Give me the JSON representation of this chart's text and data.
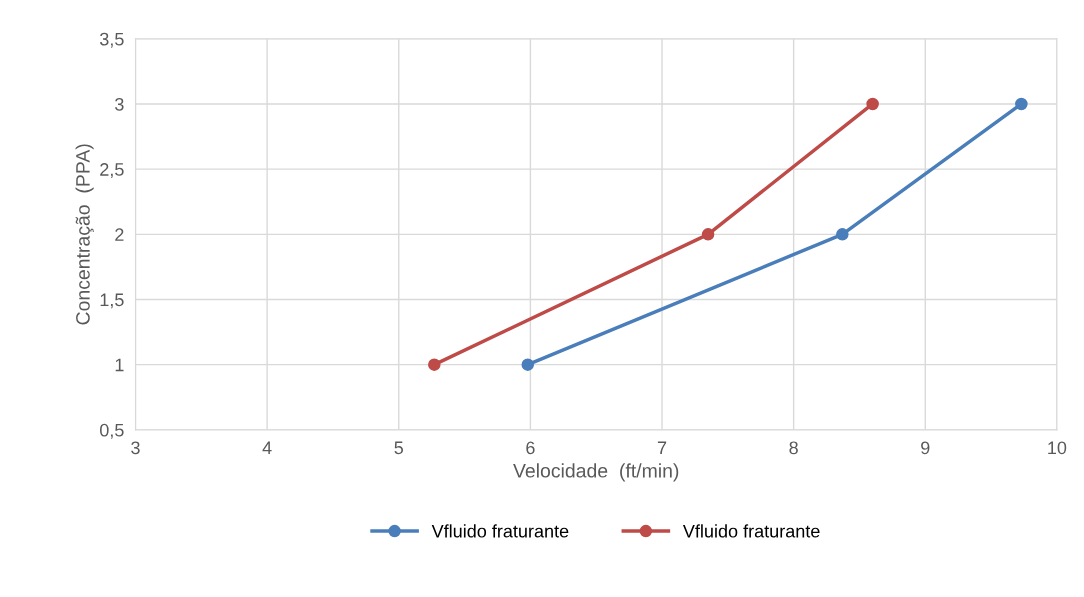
{
  "chart_data": {
    "type": "line",
    "xlabel": "Velocidade  (ft/min)",
    "ylabel": "Concentração  (PPA)",
    "series": [
      {
        "name": "Vfluido fraturante",
        "color": "#4a7ebb",
        "x": [
          5.98,
          8.37,
          9.73
        ],
        "values": [
          1,
          2,
          3
        ]
      },
      {
        "name": "Vfluido fraturante",
        "color": "#be4b48",
        "x": [
          5.27,
          7.35,
          8.6
        ],
        "values": [
          1,
          2,
          3
        ]
      }
    ],
    "xlim": [
      3,
      10
    ],
    "xticks": [
      3,
      4,
      5,
      6,
      7,
      8,
      9,
      10
    ],
    "ylim": [
      0.5,
      3.5
    ],
    "yticks": [
      {
        "value": 0.5,
        "label": "0,5"
      },
      1,
      {
        "value": 1.5,
        "label": "1,5"
      },
      2,
      {
        "value": 2.5,
        "label": "2,5"
      },
      3,
      {
        "value": 3.5,
        "label": "3,5"
      }
    ],
    "grid": true,
    "legend": "bottom",
    "marker": "circle",
    "line_style": "solid"
  }
}
